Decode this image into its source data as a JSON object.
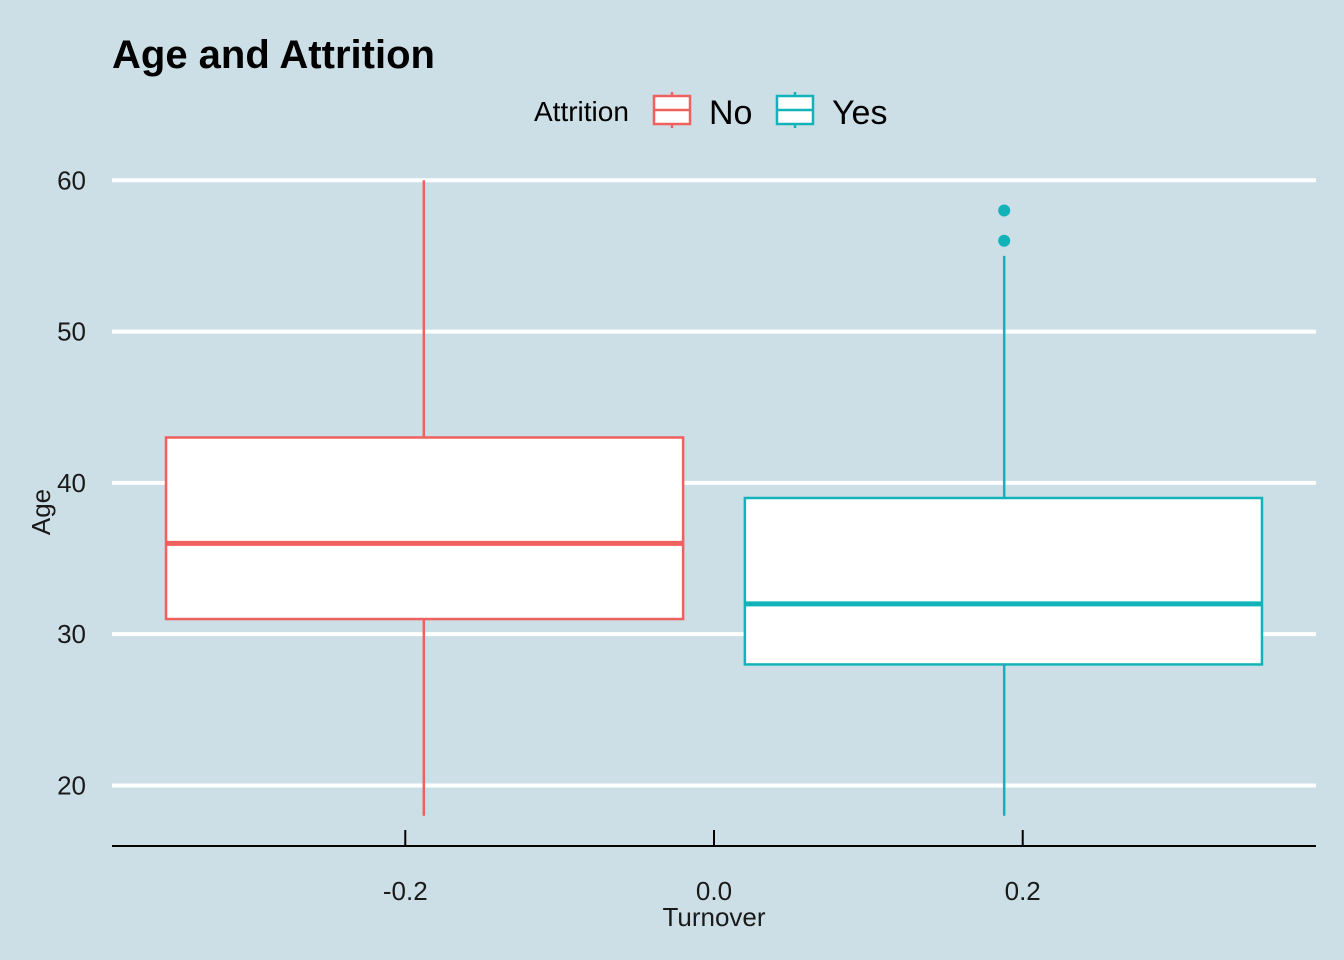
{
  "chart_data": {
    "type": "boxplot",
    "title": "Age and Attrition",
    "xlabel": "Turnover",
    "ylabel": "Age",
    "xlim": [
      -0.39,
      0.39
    ],
    "ylim": [
      16,
      62
    ],
    "x_ticks": [
      "-0.2",
      "0.0",
      "0.2"
    ],
    "x_tick_values": [
      -0.2,
      0.0,
      0.2
    ],
    "y_ticks": [
      "20",
      "30",
      "40",
      "50",
      "60"
    ],
    "y_tick_values": [
      20,
      30,
      40,
      50,
      60
    ],
    "grid": "horizontal",
    "legend": {
      "title": "Attrition",
      "position": "top"
    },
    "series": [
      {
        "name": "No",
        "color": "#f0605f",
        "x_min": -0.355,
        "x_max": -0.02,
        "x_center": -0.188,
        "whisker_low": 18,
        "q1": 31,
        "median": 36,
        "q3": 43,
        "whisker_high": 60,
        "outliers": []
      },
      {
        "name": "Yes",
        "color": "#12b3b8",
        "x_min": 0.02,
        "x_max": 0.355,
        "x_center": 0.188,
        "whisker_low": 18,
        "q1": 28,
        "median": 32,
        "q3": 39,
        "whisker_high": 55,
        "outliers": [
          56,
          58
        ]
      }
    ]
  }
}
